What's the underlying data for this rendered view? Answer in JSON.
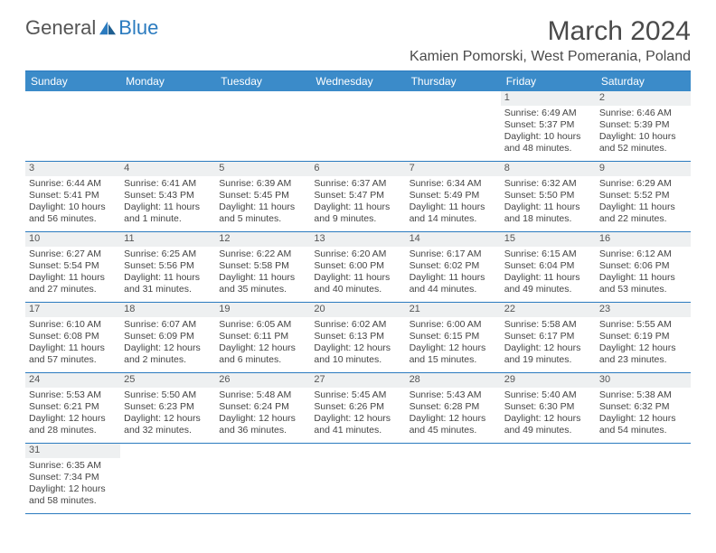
{
  "brand": {
    "part1": "General",
    "part2": "Blue",
    "color1": "#555555",
    "color2": "#2b7bbf"
  },
  "title": "March 2024",
  "location": "Kamien Pomorski, West Pomerania, Poland",
  "dayNames": [
    "Sunday",
    "Monday",
    "Tuesday",
    "Wednesday",
    "Thursday",
    "Friday",
    "Saturday"
  ],
  "colors": {
    "headerBg": "#3b8bc9",
    "border": "#2b7bbf",
    "dayRowBg": "#eef0f1"
  },
  "firstDayOffset": 5,
  "days": [
    {
      "n": 1,
      "sr": "6:49 AM",
      "ss": "5:37 PM",
      "dl": "10 hours and 48 minutes."
    },
    {
      "n": 2,
      "sr": "6:46 AM",
      "ss": "5:39 PM",
      "dl": "10 hours and 52 minutes."
    },
    {
      "n": 3,
      "sr": "6:44 AM",
      "ss": "5:41 PM",
      "dl": "10 hours and 56 minutes."
    },
    {
      "n": 4,
      "sr": "6:41 AM",
      "ss": "5:43 PM",
      "dl": "11 hours and 1 minute."
    },
    {
      "n": 5,
      "sr": "6:39 AM",
      "ss": "5:45 PM",
      "dl": "11 hours and 5 minutes."
    },
    {
      "n": 6,
      "sr": "6:37 AM",
      "ss": "5:47 PM",
      "dl": "11 hours and 9 minutes."
    },
    {
      "n": 7,
      "sr": "6:34 AM",
      "ss": "5:49 PM",
      "dl": "11 hours and 14 minutes."
    },
    {
      "n": 8,
      "sr": "6:32 AM",
      "ss": "5:50 PM",
      "dl": "11 hours and 18 minutes."
    },
    {
      "n": 9,
      "sr": "6:29 AM",
      "ss": "5:52 PM",
      "dl": "11 hours and 22 minutes."
    },
    {
      "n": 10,
      "sr": "6:27 AM",
      "ss": "5:54 PM",
      "dl": "11 hours and 27 minutes."
    },
    {
      "n": 11,
      "sr": "6:25 AM",
      "ss": "5:56 PM",
      "dl": "11 hours and 31 minutes."
    },
    {
      "n": 12,
      "sr": "6:22 AM",
      "ss": "5:58 PM",
      "dl": "11 hours and 35 minutes."
    },
    {
      "n": 13,
      "sr": "6:20 AM",
      "ss": "6:00 PM",
      "dl": "11 hours and 40 minutes."
    },
    {
      "n": 14,
      "sr": "6:17 AM",
      "ss": "6:02 PM",
      "dl": "11 hours and 44 minutes."
    },
    {
      "n": 15,
      "sr": "6:15 AM",
      "ss": "6:04 PM",
      "dl": "11 hours and 49 minutes."
    },
    {
      "n": 16,
      "sr": "6:12 AM",
      "ss": "6:06 PM",
      "dl": "11 hours and 53 minutes."
    },
    {
      "n": 17,
      "sr": "6:10 AM",
      "ss": "6:08 PM",
      "dl": "11 hours and 57 minutes."
    },
    {
      "n": 18,
      "sr": "6:07 AM",
      "ss": "6:09 PM",
      "dl": "12 hours and 2 minutes."
    },
    {
      "n": 19,
      "sr": "6:05 AM",
      "ss": "6:11 PM",
      "dl": "12 hours and 6 minutes."
    },
    {
      "n": 20,
      "sr": "6:02 AM",
      "ss": "6:13 PM",
      "dl": "12 hours and 10 minutes."
    },
    {
      "n": 21,
      "sr": "6:00 AM",
      "ss": "6:15 PM",
      "dl": "12 hours and 15 minutes."
    },
    {
      "n": 22,
      "sr": "5:58 AM",
      "ss": "6:17 PM",
      "dl": "12 hours and 19 minutes."
    },
    {
      "n": 23,
      "sr": "5:55 AM",
      "ss": "6:19 PM",
      "dl": "12 hours and 23 minutes."
    },
    {
      "n": 24,
      "sr": "5:53 AM",
      "ss": "6:21 PM",
      "dl": "12 hours and 28 minutes."
    },
    {
      "n": 25,
      "sr": "5:50 AM",
      "ss": "6:23 PM",
      "dl": "12 hours and 32 minutes."
    },
    {
      "n": 26,
      "sr": "5:48 AM",
      "ss": "6:24 PM",
      "dl": "12 hours and 36 minutes."
    },
    {
      "n": 27,
      "sr": "5:45 AM",
      "ss": "6:26 PM",
      "dl": "12 hours and 41 minutes."
    },
    {
      "n": 28,
      "sr": "5:43 AM",
      "ss": "6:28 PM",
      "dl": "12 hours and 45 minutes."
    },
    {
      "n": 29,
      "sr": "5:40 AM",
      "ss": "6:30 PM",
      "dl": "12 hours and 49 minutes."
    },
    {
      "n": 30,
      "sr": "5:38 AM",
      "ss": "6:32 PM",
      "dl": "12 hours and 54 minutes."
    },
    {
      "n": 31,
      "sr": "6:35 AM",
      "ss": "7:34 PM",
      "dl": "12 hours and 58 minutes."
    }
  ],
  "labels": {
    "sunrise": "Sunrise:",
    "sunset": "Sunset:",
    "daylight": "Daylight:"
  }
}
